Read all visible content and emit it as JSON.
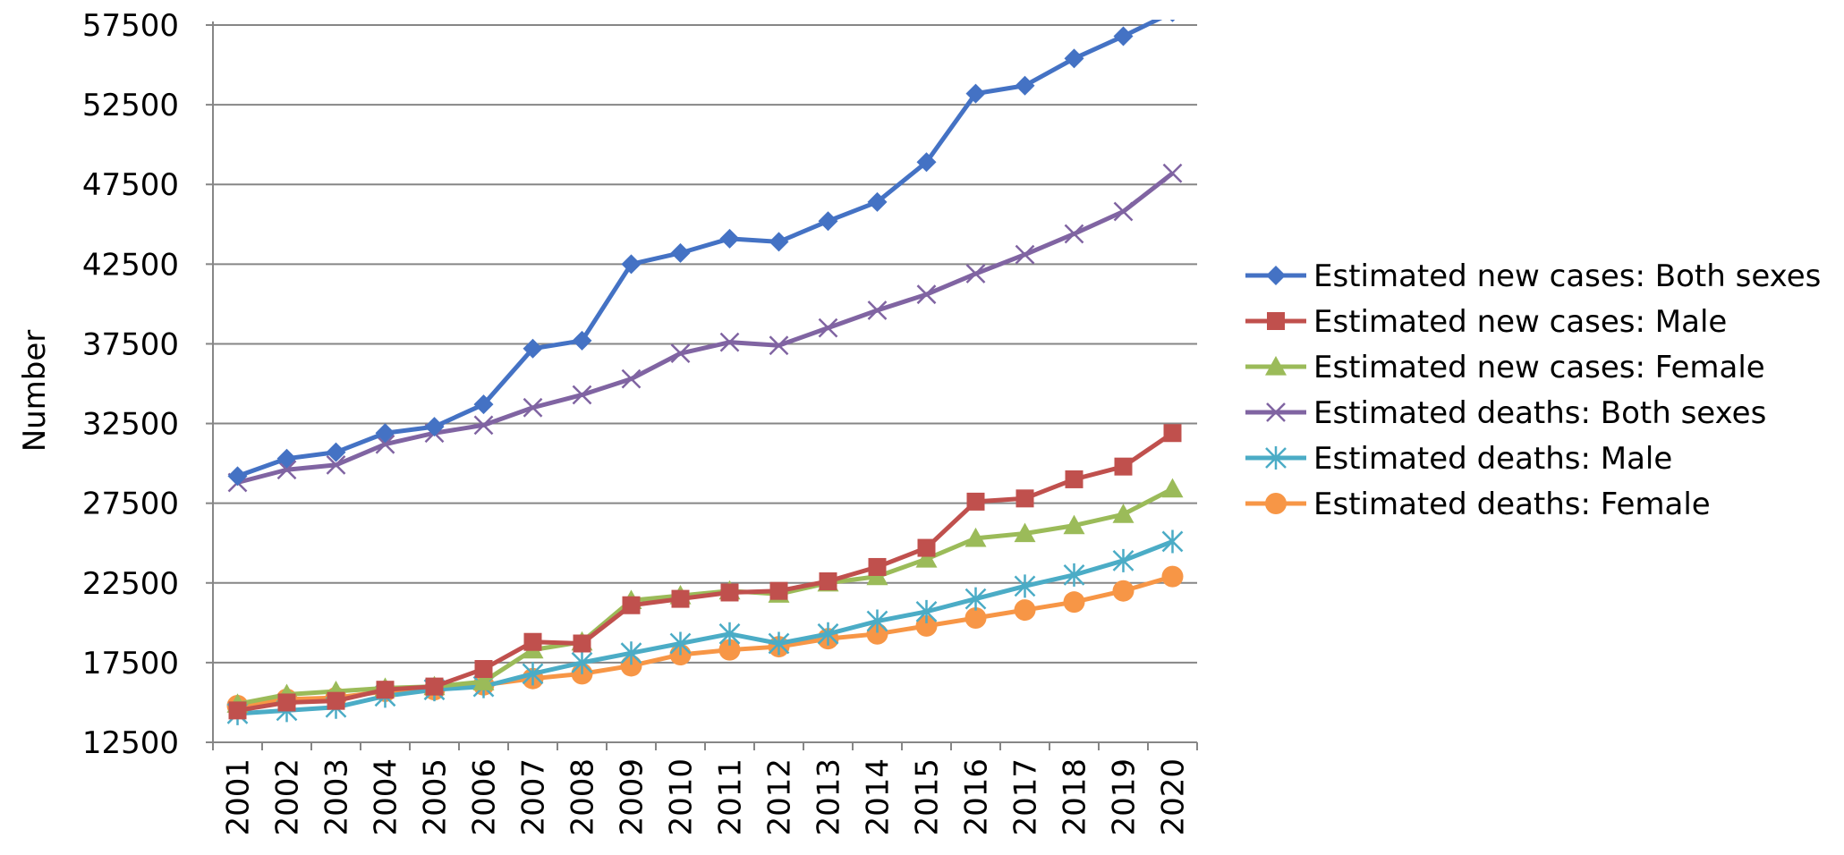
{
  "chart_data": {
    "type": "line",
    "title": "",
    "xlabel": "",
    "ylabel": "Number",
    "x": [
      "2001",
      "2002",
      "2003",
      "2004",
      "2005",
      "2006",
      "2007",
      "2008",
      "2009",
      "2010",
      "2011",
      "2012",
      "2013",
      "2014",
      "2015",
      "2016",
      "2017",
      "2018",
      "2019",
      "2020"
    ],
    "ylim": [
      12500,
      57500
    ],
    "yticks": [
      "12500",
      "17500",
      "22500",
      "27500",
      "32500",
      "37500",
      "42500",
      "47500",
      "52500",
      "57500"
    ],
    "grid": "horizontal",
    "legend_position": "right",
    "series": [
      {
        "name": "Estimated new cases: Both sexes",
        "color": "#4472C4",
        "marker": "diamond",
        "values": [
          29200,
          30300,
          30700,
          31900,
          32300,
          33700,
          37200,
          37700,
          42500,
          43200,
          44100,
          43900,
          45200,
          46400,
          48900,
          53200,
          53700,
          55400,
          56800,
          58300
        ]
      },
      {
        "name": "Estimated new cases: Male",
        "color": "#C0504D",
        "marker": "square",
        "values": [
          14500,
          15000,
          15100,
          15800,
          16000,
          17100,
          18800,
          18700,
          21100,
          21500,
          21900,
          22000,
          22600,
          23500,
          24700,
          27600,
          27800,
          29000,
          29800,
          31900
        ]
      },
      {
        "name": "Estimated new cases: Female",
        "color": "#9BBB59",
        "marker": "triangle",
        "values": [
          14900,
          15500,
          15700,
          15900,
          16000,
          16300,
          18300,
          18800,
          21400,
          21700,
          22000,
          21800,
          22500,
          22900,
          24000,
          25300,
          25600,
          26100,
          26800,
          28400
        ]
      },
      {
        "name": "Estimated deaths: Both sexes",
        "color": "#8064A2",
        "marker": "x",
        "values": [
          28800,
          29600,
          29900,
          31200,
          31900,
          32400,
          33500,
          34300,
          35300,
          36900,
          37600,
          37400,
          38500,
          39600,
          40600,
          41900,
          43100,
          44400,
          45800,
          48200
        ]
      },
      {
        "name": "Estimated deaths: Male",
        "color": "#4BACC6",
        "marker": "star",
        "values": [
          14300,
          14500,
          14700,
          15400,
          15800,
          16000,
          16800,
          17500,
          18100,
          18700,
          19300,
          18700,
          19300,
          20100,
          20700,
          21500,
          22300,
          23000,
          23900,
          25100
        ]
      },
      {
        "name": "Estimated deaths: Female",
        "color": "#F79646",
        "marker": "circle",
        "values": [
          14800,
          15200,
          15300,
          15700,
          15800,
          16100,
          16500,
          16800,
          17300,
          18000,
          18300,
          18500,
          19000,
          19300,
          19800,
          20300,
          20800,
          21300,
          22000,
          22900
        ]
      }
    ],
    "legend_labels": [
      [
        "Estimated new cases",
        ": Both sexes"
      ],
      [
        "Estimated new cases",
        ": Male"
      ],
      [
        "Estimated new cases",
        ": Female"
      ],
      [
        "Estimated deaths",
        ": Both sexes"
      ],
      [
        "Estimated deaths",
        ": Male"
      ],
      [
        "Estimated deaths",
        ": Female"
      ]
    ]
  }
}
